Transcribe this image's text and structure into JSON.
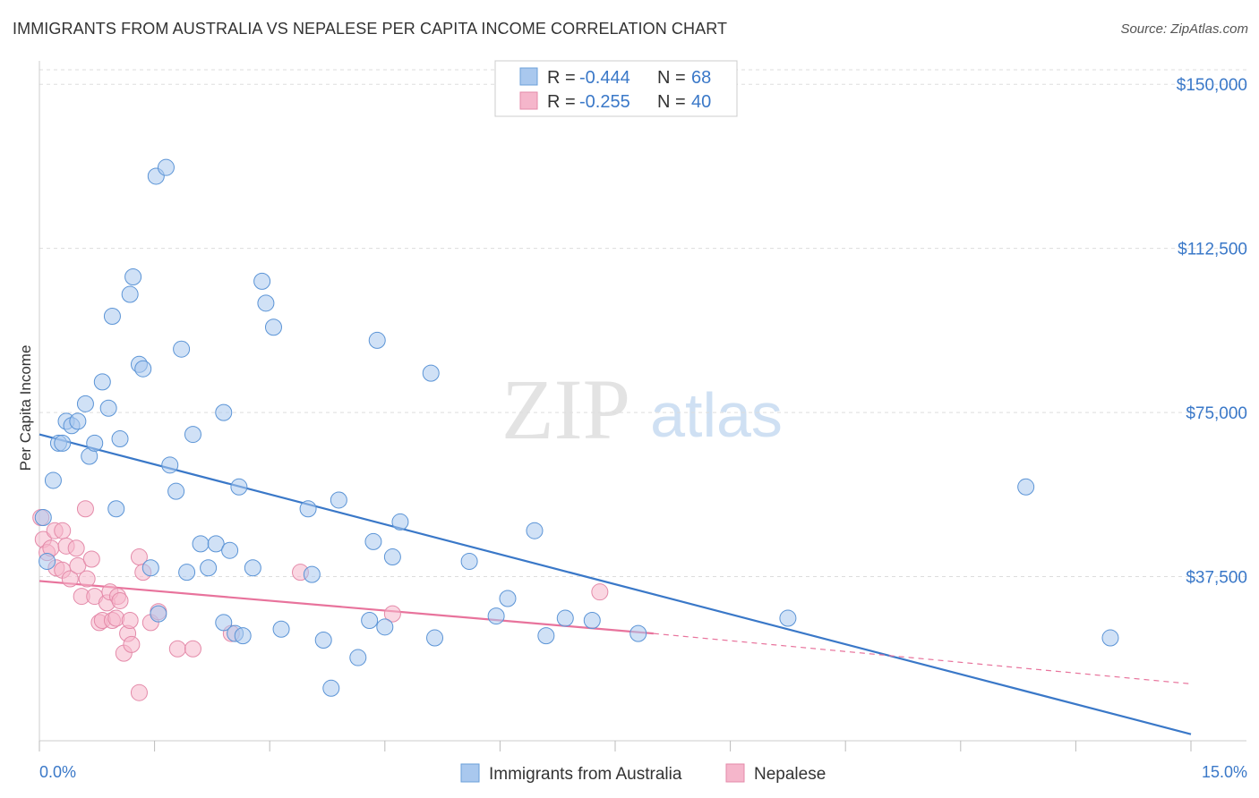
{
  "title": "IMMIGRANTS FROM AUSTRALIA VS NEPALESE PER CAPITA INCOME CORRELATION CHART",
  "source": "Source: ZipAtlas.com",
  "watermark": {
    "zip": "ZIP",
    "atlas": "atlas"
  },
  "colors": {
    "blue": "#3a78c8",
    "blue_fill": "#a9c8ee",
    "pink": "#e8739c",
    "pink_fill": "#f5b6cb"
  },
  "legend": {
    "rows": [
      {
        "r_label": "R =",
        "r_value": "-0.444",
        "n_label": "N =",
        "n_value": "68"
      },
      {
        "r_label": "R =",
        "r_value": "-0.255",
        "n_label": "N =",
        "n_value": "40"
      }
    ]
  },
  "chart_data": {
    "type": "scatter",
    "title": "IMMIGRANTS FROM AUSTRALIA VS NEPALESE PER CAPITA INCOME CORRELATION CHART",
    "xlabel": "",
    "ylabel": "Per Capita Income",
    "xlim": [
      0,
      15
    ],
    "ylim": [
      0,
      157000
    ],
    "x_tick_labels": [
      "0.0%",
      "15.0%"
    ],
    "y_ticks": [
      37500,
      75000,
      112500,
      150000
    ],
    "y_tick_labels": [
      "$37,500",
      "$75,000",
      "$112,500",
      "$150,000"
    ],
    "grid": true,
    "series": [
      {
        "name": "Immigrants from Australia",
        "color": "#3a78c8",
        "trend": {
          "x": [
            0,
            15
          ],
          "y": [
            70000,
            1500
          ]
        },
        "points": [
          [
            0.05,
            51000
          ],
          [
            0.1,
            41000
          ],
          [
            0.18,
            59500
          ],
          [
            0.25,
            68000
          ],
          [
            0.3,
            68000
          ],
          [
            0.35,
            73000
          ],
          [
            0.42,
            72000
          ],
          [
            0.5,
            73000
          ],
          [
            0.6,
            77000
          ],
          [
            0.65,
            65000
          ],
          [
            0.72,
            68000
          ],
          [
            0.82,
            82000
          ],
          [
            0.9,
            76000
          ],
          [
            0.95,
            97000
          ],
          [
            1.05,
            69000
          ],
          [
            1.0,
            53000
          ],
          [
            1.18,
            102000
          ],
          [
            1.22,
            106000
          ],
          [
            1.3,
            86000
          ],
          [
            1.35,
            85000
          ],
          [
            1.45,
            39500
          ],
          [
            1.52,
            129000
          ],
          [
            1.65,
            131000
          ],
          [
            1.55,
            29000
          ],
          [
            1.7,
            63000
          ],
          [
            1.78,
            57000
          ],
          [
            1.85,
            89500
          ],
          [
            1.92,
            38500
          ],
          [
            2.0,
            70000
          ],
          [
            2.1,
            45000
          ],
          [
            2.2,
            39500
          ],
          [
            2.3,
            45000
          ],
          [
            2.4,
            27000
          ],
          [
            2.4,
            75000
          ],
          [
            2.48,
            43500
          ],
          [
            2.55,
            24500
          ],
          [
            2.6,
            58000
          ],
          [
            2.65,
            24000
          ],
          [
            2.78,
            39500
          ],
          [
            2.9,
            105000
          ],
          [
            2.95,
            100000
          ],
          [
            3.05,
            94500
          ],
          [
            3.15,
            25500
          ],
          [
            3.5,
            53000
          ],
          [
            3.55,
            38000
          ],
          [
            3.7,
            23000
          ],
          [
            3.8,
            12000
          ],
          [
            3.9,
            55000
          ],
          [
            4.15,
            19000
          ],
          [
            4.3,
            27500
          ],
          [
            4.35,
            45500
          ],
          [
            4.4,
            91500
          ],
          [
            4.5,
            26000
          ],
          [
            4.6,
            42000
          ],
          [
            4.7,
            50000
          ],
          [
            5.1,
            84000
          ],
          [
            5.15,
            23500
          ],
          [
            5.6,
            41000
          ],
          [
            5.95,
            28500
          ],
          [
            6.1,
            32500
          ],
          [
            6.45,
            48000
          ],
          [
            6.6,
            24000
          ],
          [
            6.85,
            28000
          ],
          [
            7.2,
            27500
          ],
          [
            7.8,
            24500
          ],
          [
            9.75,
            28000
          ],
          [
            12.85,
            58000
          ],
          [
            13.95,
            23500
          ]
        ]
      },
      {
        "name": "Nepalese",
        "color": "#e8739c",
        "trend": {
          "x": [
            0,
            8.0
          ],
          "y": [
            36500,
            24500
          ]
        },
        "trend_dashed": {
          "x": [
            8.0,
            15
          ],
          "y": [
            24500,
            13000
          ]
        },
        "points": [
          [
            0.02,
            51000
          ],
          [
            0.05,
            46000
          ],
          [
            0.1,
            43000
          ],
          [
            0.15,
            44000
          ],
          [
            0.2,
            48000
          ],
          [
            0.22,
            39500
          ],
          [
            0.3,
            48000
          ],
          [
            0.3,
            39000
          ],
          [
            0.35,
            44500
          ],
          [
            0.4,
            37000
          ],
          [
            0.48,
            44000
          ],
          [
            0.5,
            40000
          ],
          [
            0.55,
            33000
          ],
          [
            0.6,
            53000
          ],
          [
            0.62,
            37000
          ],
          [
            0.68,
            41500
          ],
          [
            0.72,
            33000
          ],
          [
            0.78,
            27000
          ],
          [
            0.82,
            27500
          ],
          [
            0.88,
            31500
          ],
          [
            0.92,
            34000
          ],
          [
            0.95,
            27500
          ],
          [
            1.0,
            28000
          ],
          [
            1.02,
            33000
          ],
          [
            1.05,
            32000
          ],
          [
            1.1,
            20000
          ],
          [
            1.15,
            24500
          ],
          [
            1.18,
            27500
          ],
          [
            1.2,
            22000
          ],
          [
            1.3,
            42000
          ],
          [
            1.3,
            11000
          ],
          [
            1.35,
            38500
          ],
          [
            1.45,
            27000
          ],
          [
            1.55,
            29500
          ],
          [
            1.8,
            21000
          ],
          [
            2.0,
            21000
          ],
          [
            2.5,
            24500
          ],
          [
            3.4,
            38500
          ],
          [
            4.6,
            29000
          ],
          [
            7.3,
            34000
          ]
        ]
      }
    ],
    "legend_position": "top-center"
  }
}
